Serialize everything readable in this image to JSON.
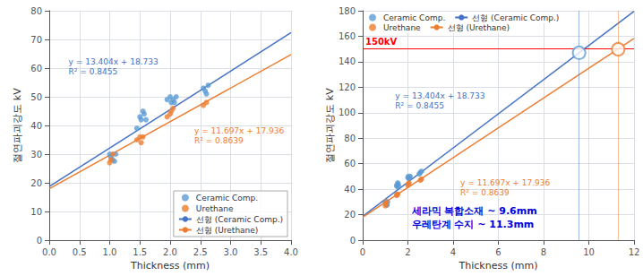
{
  "chart_data": [
    {
      "type": "scatter",
      "xlabel": "Thickness (mm)",
      "ylabel": "절연파괴강도 kV",
      "xlim": [
        0,
        4
      ],
      "ylim": [
        0,
        80
      ],
      "xticks": [
        {
          "value": 0,
          "label": "0.0"
        },
        0.5,
        {
          "value": 1.0,
          "label": "1.0"
        },
        1.5,
        {
          "value": 2.0,
          "label": "2.0"
        },
        2.5,
        {
          "value": 3.0,
          "label": "3.0"
        },
        3.5,
        {
          "value": 4.0,
          "label": "4.0"
        }
      ],
      "yticks": [
        0,
        10,
        20,
        30,
        40,
        50,
        60,
        70,
        80
      ],
      "grid": true,
      "legend": "lower right",
      "series": [
        {
          "name": "Ceramic Comp.",
          "type": "scatter",
          "color": "#5b9bd5",
          "x": [
            1.0,
            1.02,
            1.05,
            1.08,
            1.1,
            1.45,
            1.5,
            1.52,
            1.55,
            1.57,
            1.6,
            1.95,
            2.0,
            2.02,
            2.05,
            2.07,
            2.1,
            2.55,
            2.58,
            2.6,
            2.63
          ],
          "values": [
            30.0,
            29.0,
            28.0,
            27.5,
            30.0,
            39.0,
            43.0,
            42.0,
            45.0,
            44.0,
            42.0,
            49.0,
            50.0,
            48.0,
            49.0,
            48.0,
            50.0,
            53.0,
            52.0,
            51.0,
            54.0
          ]
        },
        {
          "name": "Urethane",
          "type": "scatter",
          "color": "#ed7d31",
          "x": [
            1.0,
            1.02,
            1.05,
            1.45,
            1.5,
            1.52,
            1.55,
            1.95,
            2.0,
            2.02,
            2.05,
            2.55,
            2.6
          ],
          "values": [
            27.0,
            28.0,
            30.0,
            35.0,
            36.0,
            34.0,
            36.0,
            43.0,
            44.0,
            45.0,
            46.0,
            47.0,
            48.0
          ]
        },
        {
          "name": "선형 (Ceramic Comp.)",
          "type": "line",
          "color": "#4472c4",
          "x": [
            0,
            4
          ],
          "values": [
            18.733,
            72.349
          ]
        },
        {
          "name": "선형 (Urethane)",
          "type": "line",
          "color": "#ed7d31",
          "x": [
            0,
            4
          ],
          "values": [
            17.936,
            64.724
          ]
        }
      ],
      "annotations": [
        {
          "text": "y = 13.404x + 18.733\nR² = 0.8455",
          "color": "#4472c4"
        },
        {
          "text": "y = 11.697x + 17.936\nR² = 0.8639",
          "color": "#ed7d31"
        }
      ]
    },
    {
      "type": "scatter",
      "xlabel": "Thickness (mm)",
      "ylabel": "절연파괴강도 kV",
      "xlim": [
        0,
        12
      ],
      "ylim": [
        0,
        180
      ],
      "xticks": [
        0,
        2,
        4,
        6,
        8,
        10,
        12
      ],
      "yticks": [
        0,
        20,
        40,
        60,
        80,
        100,
        120,
        140,
        160,
        180
      ],
      "grid": true,
      "legend": "upper left",
      "series": [
        {
          "name": "Ceramic Comp.",
          "type": "scatter",
          "color": "#5b9bd5",
          "x": [
            1.0,
            1.02,
            1.05,
            1.08,
            1.1,
            1.5,
            1.52,
            1.55,
            1.57,
            1.6,
            2.0,
            2.02,
            2.05,
            2.07,
            2.1,
            2.5,
            2.55,
            2.6
          ],
          "values": [
            30.0,
            29.0,
            28.0,
            27.5,
            30.0,
            43.0,
            42.0,
            45.0,
            44.0,
            42.0,
            49.0,
            50.0,
            48.0,
            49.0,
            50.0,
            52.0,
            53.0,
            54.0
          ]
        },
        {
          "name": "Urethane",
          "type": "scatter",
          "color": "#ed7d31",
          "x": [
            1.0,
            1.02,
            1.05,
            1.5,
            1.52,
            1.55,
            2.0,
            2.02,
            2.05,
            2.55,
            2.6
          ],
          "values": [
            27.0,
            29.0,
            30.0,
            35.0,
            36.0,
            36.0,
            43.0,
            44.0,
            45.0,
            47.0,
            48.0
          ]
        },
        {
          "name": "선형 (Ceramic Comp.)",
          "type": "line",
          "color": "#4472c4",
          "x": [
            0,
            12
          ],
          "values": [
            18.733,
            179.581
          ]
        },
        {
          "name": "선형 (Urethane)",
          "type": "line",
          "color": "#ed7d31",
          "x": [
            0,
            12
          ],
          "values": [
            17.936,
            158.3
          ]
        }
      ],
      "hlines": [
        {
          "y": 150,
          "label": "150kV",
          "color": "#ff0000"
        }
      ],
      "vlines": [
        {
          "x": 9.57,
          "color": "#4472c4"
        },
        {
          "x": 11.3,
          "color": "#ed7d31"
        }
      ],
      "points": [
        {
          "x": 9.57,
          "y": 147.0,
          "color": "#5b9bd5"
        },
        {
          "x": 11.3,
          "y": 149.8,
          "color": "#ed7d31"
        }
      ],
      "annotations": [
        {
          "text": "y = 13.404x + 18.733\nR² = 0.8455",
          "color": "#4472c4"
        },
        {
          "text": "y = 11.697x + 17.936\nR² = 0.8639",
          "color": "#ed7d31"
        }
      ],
      "callouts": [
        {
          "text": "세라믹 복합소재 ~ 9.6mm",
          "color": "#0000dd"
        },
        {
          "text": "우레탄계 수지 ~ 11.3mm",
          "color": "#0000dd"
        }
      ]
    }
  ]
}
